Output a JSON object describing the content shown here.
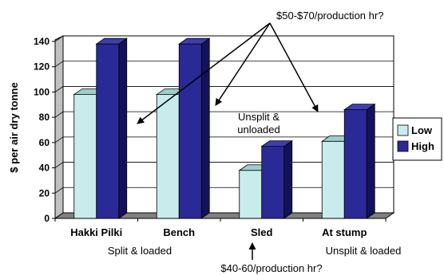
{
  "chart_data": {
    "type": "bar",
    "ylabel": "$ per air dry tonne",
    "ylim": [
      0,
      140
    ],
    "yticks": [
      0,
      20,
      40,
      60,
      80,
      100,
      120,
      140
    ],
    "grid": true,
    "legend_position": "right",
    "categories": [
      "Hakki Pilki",
      "Bench",
      "Sled",
      "At stump"
    ],
    "series": [
      {
        "name": "Low",
        "values": [
          98,
          98,
          38,
          61
        ],
        "color": "#c8ecec",
        "side_color": "#7fb2b2",
        "top_color": "#9fcccc"
      },
      {
        "name": "High",
        "values": [
          138,
          138,
          57,
          86
        ],
        "color": "#2a2a96",
        "side_color": "#12125c",
        "top_color": "#3e3eae"
      }
    ],
    "annotations": {
      "rate_high": "$50-$70/production hr?",
      "rate_low": "$40-60/production hr?",
      "unsplit_unloaded": [
        "Unsplit &",
        "unloaded"
      ],
      "split_loaded": "Split & loaded",
      "unsplit_loaded": "Unsplit & loaded"
    }
  }
}
